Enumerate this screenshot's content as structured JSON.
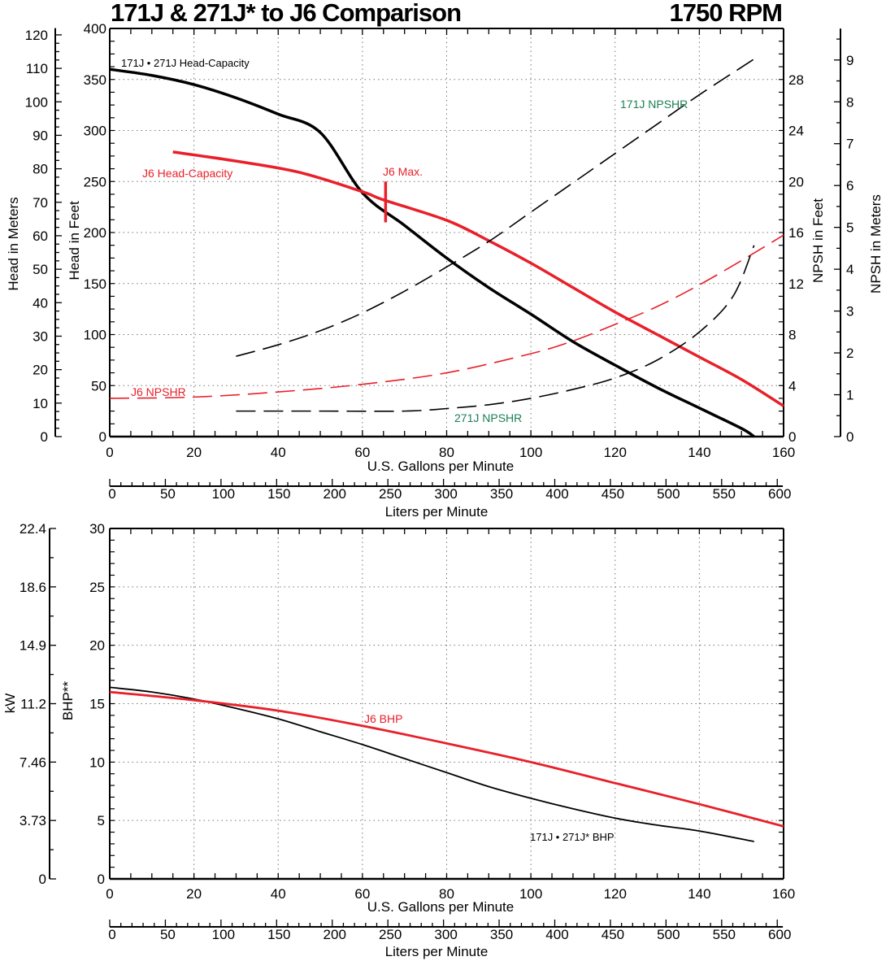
{
  "header": {
    "title": "171J & 271J* to J6 Comparison",
    "rpm": "1750 RPM"
  },
  "colors": {
    "black": "#000000",
    "red": "#e8202a",
    "green": "#1a7f55",
    "grid": "#888888"
  },
  "chart_data": [
    {
      "type": "line",
      "title": "171J & 271J* to J6 Comparison — Head & NPSHR",
      "xlabel": "U.S. Gallons per Minute",
      "xlabel_secondary": "Liters per Minute",
      "ylabel": "Head in Feet",
      "ylabel_secondary_left": "Head in Meters",
      "ylabel_right": "NPSH in Feet",
      "ylabel_right_secondary": "NPSH in Meters",
      "xlim": [
        0,
        160
      ],
      "ylim": [
        0,
        400
      ],
      "ylim_meters": [
        0,
        122
      ],
      "ylim_npsh_ft": [
        0,
        32
      ],
      "ylim_npsh_m": [
        0,
        9.75
      ],
      "x_ticks": [
        0,
        20,
        40,
        60,
        80,
        100,
        120,
        140,
        160
      ],
      "x_ticks_lpm": [
        0,
        50,
        100,
        150,
        200,
        250,
        300,
        350,
        400,
        450,
        500,
        550,
        600
      ],
      "y_ticks_ft": [
        0,
        50,
        100,
        150,
        200,
        250,
        300,
        350,
        400
      ],
      "y_ticks_m": [
        0,
        10,
        20,
        30,
        40,
        50,
        60,
        70,
        80,
        90,
        100,
        110,
        120
      ],
      "y_ticks_npsh_ft": [
        0,
        4,
        8,
        12,
        16,
        20,
        24,
        28
      ],
      "y_ticks_npsh_m": [
        0,
        1,
        2,
        3,
        4,
        5,
        6,
        7,
        8,
        9
      ],
      "grid": true,
      "series": [
        {
          "name": "171J • 271J Head-Capacity",
          "axis": "head_ft",
          "style": "solid",
          "color": "#000000",
          "x": [
            0,
            10,
            20,
            30,
            40,
            50,
            60,
            70,
            80,
            90,
            100,
            110,
            120,
            130,
            140,
            150,
            153
          ],
          "y": [
            360,
            354,
            345,
            332,
            316,
            298,
            239,
            207,
            175,
            146,
            120,
            93,
            70,
            48,
            28,
            8,
            0
          ]
        },
        {
          "name": "J6 Head-Capacity",
          "axis": "head_ft",
          "style": "solid",
          "color": "#e8202a",
          "x": [
            15,
            30,
            45,
            60,
            65,
            80,
            90,
            100,
            110,
            120,
            130,
            140,
            150,
            160
          ],
          "y": [
            279,
            270,
            259,
            240,
            232,
            212,
            192,
            170,
            146,
            122,
            100,
            78,
            56,
            30
          ]
        },
        {
          "name": "171J NPSHR",
          "axis": "npsh_ft",
          "style": "dashed",
          "color": "#000000",
          "x": [
            30,
            40,
            50,
            60,
            70,
            80,
            90,
            100,
            110,
            120,
            130,
            140,
            153
          ],
          "y": [
            6.3,
            7.2,
            8.3,
            9.7,
            11.4,
            13.3,
            15.3,
            17.6,
            19.9,
            22.2,
            24.5,
            26.8,
            29.6
          ]
        },
        {
          "name": "J6 NPSHR",
          "axis": "npsh_ft",
          "style": "dashed",
          "color": "#e8202a",
          "x": [
            0,
            20,
            40,
            60,
            80,
            100,
            110,
            120,
            130,
            140,
            150,
            160
          ],
          "y": [
            3.0,
            3.1,
            3.5,
            4.1,
            5.0,
            6.5,
            7.5,
            8.8,
            10.2,
            11.9,
            13.8,
            15.8
          ]
        },
        {
          "name": "271J NPSHR",
          "axis": "npsh_ft",
          "style": "dashed",
          "color": "#000000",
          "x": [
            30,
            50,
            70,
            80,
            90,
            100,
            110,
            120,
            130,
            140,
            148,
            153
          ],
          "y": [
            2.0,
            2.0,
            2.0,
            2.2,
            2.5,
            3.0,
            3.7,
            4.6,
            6.0,
            8.2,
            11.0,
            15.0
          ]
        },
        {
          "name": "J6 Max.",
          "axis": "head_ft",
          "style": "marker",
          "color": "#e8202a",
          "x": [
            65.5,
            65.5
          ],
          "y": [
            250,
            210
          ]
        }
      ],
      "annotations": [
        {
          "text": "171J • 271J Head-Capacity",
          "color": "#000000"
        },
        {
          "text": "J6 Head-Capacity",
          "color": "#e8202a"
        },
        {
          "text": "J6 Max.",
          "color": "#e8202a"
        },
        {
          "text": "171J NPSHR",
          "color": "#1a7f55"
        },
        {
          "text": "J6 NPSHR",
          "color": "#e8202a"
        },
        {
          "text": "271J NPSHR",
          "color": "#1a7f55"
        }
      ]
    },
    {
      "type": "line",
      "title": "BHP",
      "xlabel": "U.S. Gallons per Minute",
      "xlabel_secondary": "Liters per Minute",
      "ylabel": "BHP**",
      "ylabel_secondary_left": "kW",
      "xlim": [
        0,
        160
      ],
      "ylim": [
        0,
        30
      ],
      "x_ticks": [
        0,
        20,
        40,
        60,
        80,
        100,
        120,
        140,
        160
      ],
      "x_ticks_lpm": [
        0,
        50,
        100,
        150,
        200,
        250,
        300,
        350,
        400,
        450,
        500,
        550,
        600
      ],
      "y_ticks": [
        0,
        5,
        10,
        15,
        20,
        25,
        30
      ],
      "y_ticks_kw": [
        "0",
        "3.73",
        "7.46",
        "11.2",
        "14.9",
        "18.6",
        "22.4"
      ],
      "grid": true,
      "series": [
        {
          "name": "171J • 271J* BHP",
          "style": "solid-thin",
          "color": "#000000",
          "x": [
            0,
            10,
            20,
            30,
            40,
            50,
            60,
            70,
            80,
            90,
            100,
            110,
            120,
            130,
            140,
            153
          ],
          "y": [
            16.4,
            16.0,
            15.4,
            14.6,
            13.7,
            12.6,
            11.5,
            10.3,
            9.1,
            7.9,
            6.9,
            6.0,
            5.2,
            4.6,
            4.1,
            3.2
          ]
        },
        {
          "name": "J6 BHP",
          "style": "solid",
          "color": "#e8202a",
          "x": [
            0,
            20,
            40,
            60,
            80,
            100,
            120,
            140,
            160
          ],
          "y": [
            16.0,
            15.3,
            14.4,
            13.1,
            11.6,
            10.0,
            8.2,
            6.4,
            4.5
          ]
        }
      ],
      "annotations": [
        {
          "text": "J6 BHP",
          "color": "#e8202a"
        },
        {
          "text": "171J • 271J* BHP",
          "color": "#000000"
        }
      ]
    }
  ],
  "labels": {
    "top": {
      "head_meters": "Head in Meters",
      "head_feet": "Head in Feet",
      "npsh_feet": "NPSH in Feet",
      "npsh_meters": "NPSH in Meters",
      "x_gpm": "U.S. Gallons per Minute",
      "x_lpm": "Liters per Minute",
      "ann_171_head": "171J • 271J Head-Capacity",
      "ann_j6_head": "J6 Head-Capacity",
      "ann_j6_max": "J6 Max.",
      "ann_171_npshr": "171J NPSHR",
      "ann_j6_npshr": "J6 NPSHR",
      "ann_271_npshr": "271J NPSHR"
    },
    "bottom": {
      "kw": "kW",
      "bhp": "BHP**",
      "x_gpm": "U.S. Gallons per Minute",
      "x_lpm": "Liters per Minute",
      "ann_j6_bhp": "J6 BHP",
      "ann_171_bhp": "171J • 271J* BHP"
    }
  }
}
